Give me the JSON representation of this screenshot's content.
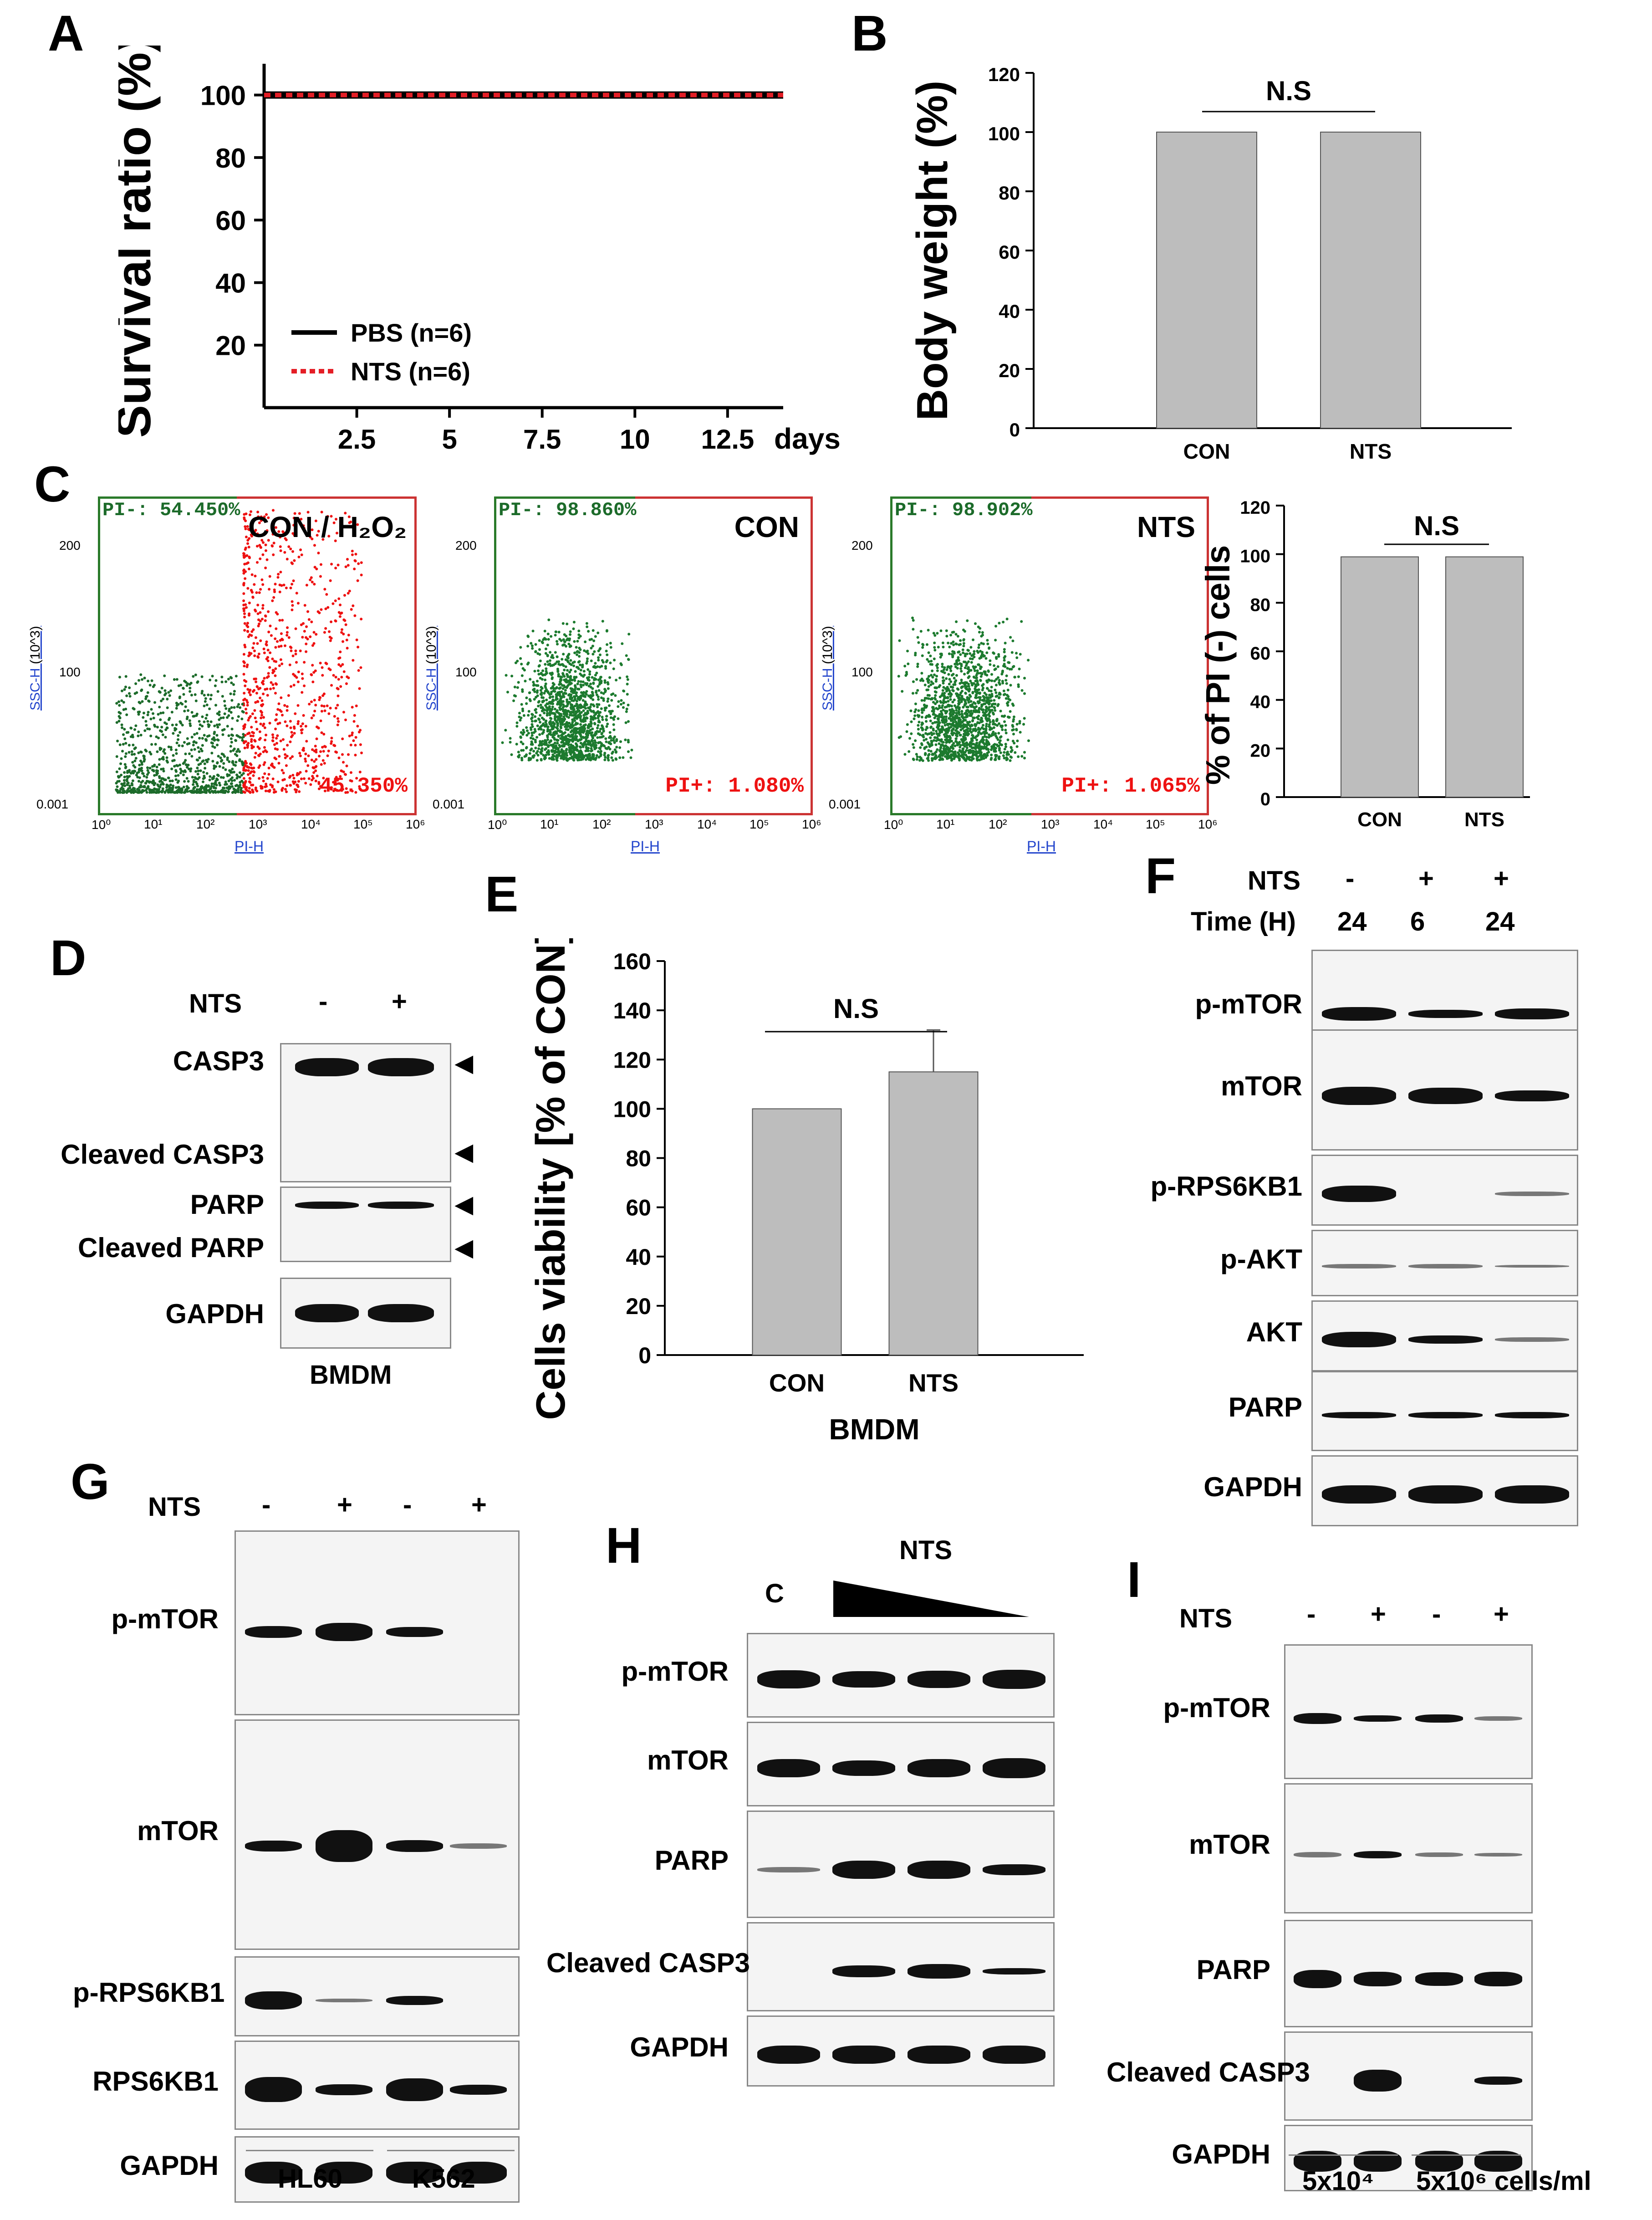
{
  "panels": {
    "A": {
      "label": "A",
      "chart_data": {
        "type": "line",
        "ylabel": "Survival ratio (%)",
        "xlabel": "days",
        "x_ticks": [
          "2.5",
          "5",
          "7.5",
          "10",
          "12.5"
        ],
        "y_ticks": [
          "20",
          "40",
          "60",
          "80",
          "100"
        ],
        "xlim": [
          0,
          14
        ],
        "ylim": [
          0,
          110
        ],
        "series": [
          {
            "name": "PBS (n=6)",
            "x": [
              0,
              14
            ],
            "values": [
              100,
              100
            ],
            "color": "#000000",
            "style": "solid"
          },
          {
            "name": "NTS (n=6)",
            "x": [
              0,
              14
            ],
            "values": [
              100,
              100
            ],
            "color": "#e41e26",
            "style": "dotted"
          }
        ]
      }
    },
    "B": {
      "label": "B",
      "chart_data": {
        "type": "bar",
        "ylabel": "Body weight (%)",
        "categories": [
          "CON",
          "NTS"
        ],
        "values": [
          100,
          100
        ],
        "y_ticks": [
          "0",
          "20",
          "40",
          "60",
          "80",
          "100",
          "120"
        ],
        "ylim": [
          0,
          120
        ],
        "annotation": "N.S",
        "bar_color": "#bdbdbd"
      }
    },
    "C": {
      "label": "C",
      "flow": [
        {
          "title": "CON / H₂O₂",
          "neg": "PI-: 54.450%",
          "pos": "45.350%"
        },
        {
          "title": "CON",
          "neg": "PI-: 98.860%",
          "pos": "PI+: 1.080%"
        },
        {
          "title": "NTS",
          "neg": "PI-: 98.902%",
          "pos": "PI+: 1.065%"
        }
      ],
      "flow_axis": {
        "ylabel": "SSC-H",
        "yunit": "(10^3)",
        "xlabel": "PI-H",
        "y_ticks": [
          "0.001",
          "100",
          "200"
        ],
        "x_ticks": [
          "10⁰",
          "10¹",
          "10²",
          "10³",
          "10⁴",
          "10⁵",
          "10⁶"
        ]
      },
      "chart_data": {
        "type": "bar",
        "ylabel": "% of PI (-) cells",
        "categories": [
          "CON",
          "NTS"
        ],
        "values": [
          98.9,
          98.9
        ],
        "y_ticks": [
          "0",
          "20",
          "40",
          "60",
          "80",
          "100",
          "120"
        ],
        "ylim": [
          0,
          120
        ],
        "annotation": "N.S",
        "bar_color": "#bdbdbd"
      }
    },
    "D": {
      "label": "D",
      "treatment_label": "NTS",
      "lanes": [
        "-",
        "+"
      ],
      "rows": [
        "CASP3",
        "Cleaved CASP3",
        "PARP",
        "Cleaved PARP",
        "GAPDH"
      ],
      "cell": "BMDM"
    },
    "E": {
      "label": "E",
      "chart_data": {
        "type": "bar",
        "ylabel": "Cells viability [% of CON]",
        "categories": [
          "CON",
          "NTS"
        ],
        "values": [
          100,
          115
        ],
        "errors": [
          0,
          17
        ],
        "y_ticks": [
          "0",
          "20",
          "40",
          "60",
          "80",
          "100",
          "120",
          "140",
          "160"
        ],
        "ylim": [
          0,
          160
        ],
        "xlabel": "BMDM",
        "annotation": "N.S",
        "bar_color": "#bdbdbd"
      }
    },
    "F": {
      "label": "F",
      "row1_label": "NTS",
      "row1": [
        "-",
        "+",
        "+"
      ],
      "row2_label": "Time (H)",
      "row2": [
        "24",
        "6",
        "24"
      ],
      "rows": [
        "p-mTOR",
        "mTOR",
        "p-RPS6KB1",
        "p-AKT",
        "AKT",
        "PARP",
        "GAPDH"
      ]
    },
    "G": {
      "label": "G",
      "treatment_label": "NTS",
      "lanes": [
        "-",
        "+",
        "-",
        "+"
      ],
      "rows": [
        "p-mTOR",
        "mTOR",
        "p-RPS6KB1",
        "RPS6KB1",
        "GAPDH"
      ],
      "cells": [
        "HL60",
        "K562"
      ]
    },
    "H": {
      "label": "H",
      "control": "C",
      "treatment_label": "NTS",
      "rows": [
        "p-mTOR",
        "mTOR",
        "PARP",
        "Cleaved CASP3",
        "GAPDH"
      ]
    },
    "I": {
      "label": "I",
      "treatment_label": "NTS",
      "lanes": [
        "-",
        "+",
        "-",
        "+"
      ],
      "rows": [
        "p-mTOR",
        "mTOR",
        "PARP",
        "Cleaved CASP3",
        "GAPDH"
      ],
      "density1": "5x10⁴",
      "density2": "5x10⁶ cells/ml"
    }
  }
}
